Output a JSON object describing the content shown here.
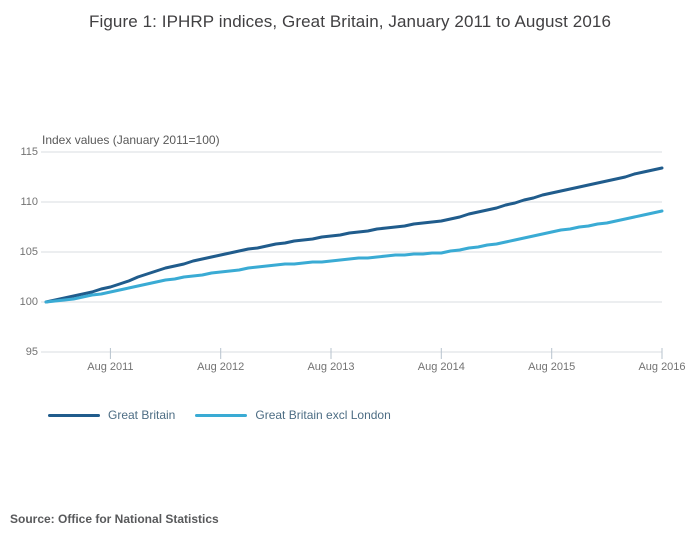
{
  "page": {
    "title": "Figure 1: IPHRP indices, Great Britain, January 2011 to August 2016",
    "source": "Source: Office for National Statistics"
  },
  "chart_data": {
    "type": "line",
    "title": "Figure 1: IPHRP indices, Great Britain, January 2011 to August 2016",
    "y_axis_title": "Index values (January 2011=100)",
    "x_start": "Jan 2011",
    "x_end": "Aug 2016",
    "frequency": "monthly",
    "ylim": [
      95,
      115
    ],
    "y_ticks": [
      115,
      110,
      105,
      100,
      95
    ],
    "x_ticks": [
      {
        "month_index": 7,
        "label": "Aug 2011"
      },
      {
        "month_index": 19,
        "label": "Aug 2012"
      },
      {
        "month_index": 31,
        "label": "Aug 2013"
      },
      {
        "month_index": 43,
        "label": "Aug 2014"
      },
      {
        "month_index": 55,
        "label": "Aug 2015"
      },
      {
        "month_index": 67,
        "label": "Aug 2016"
      }
    ],
    "grid": "horizontal",
    "grid_color": "#dadde1",
    "tick_color": "#b7c3ce",
    "legend_position": "bottom-left",
    "series": [
      {
        "name": "Great Britain",
        "color": "#205c8c",
        "values": [
          100.0,
          100.2,
          100.4,
          100.6,
          100.8,
          101.0,
          101.3,
          101.5,
          101.8,
          102.1,
          102.5,
          102.8,
          103.1,
          103.4,
          103.6,
          103.8,
          104.1,
          104.3,
          104.5,
          104.7,
          104.9,
          105.1,
          105.3,
          105.4,
          105.6,
          105.8,
          105.9,
          106.1,
          106.2,
          106.3,
          106.5,
          106.6,
          106.7,
          106.9,
          107.0,
          107.1,
          107.3,
          107.4,
          107.5,
          107.6,
          107.8,
          107.9,
          108.0,
          108.1,
          108.3,
          108.5,
          108.8,
          109.0,
          109.2,
          109.4,
          109.7,
          109.9,
          110.2,
          110.4,
          110.7,
          110.9,
          111.1,
          111.3,
          111.5,
          111.7,
          111.9,
          112.1,
          112.3,
          112.5,
          112.8,
          113.0,
          113.2,
          113.4
        ]
      },
      {
        "name": "Great Britain excl London",
        "color": "#3aabd4",
        "values": [
          100.0,
          100.1,
          100.2,
          100.3,
          100.5,
          100.7,
          100.8,
          101.0,
          101.2,
          101.4,
          101.6,
          101.8,
          102.0,
          102.2,
          102.3,
          102.5,
          102.6,
          102.7,
          102.9,
          103.0,
          103.1,
          103.2,
          103.4,
          103.5,
          103.6,
          103.7,
          103.8,
          103.8,
          103.9,
          104.0,
          104.0,
          104.1,
          104.2,
          104.3,
          104.4,
          104.4,
          104.5,
          104.6,
          104.7,
          104.7,
          104.8,
          104.8,
          104.9,
          104.9,
          105.1,
          105.2,
          105.4,
          105.5,
          105.7,
          105.8,
          106.0,
          106.2,
          106.4,
          106.6,
          106.8,
          107.0,
          107.2,
          107.3,
          107.5,
          107.6,
          107.8,
          107.9,
          108.1,
          108.3,
          108.5,
          108.7,
          108.9,
          109.1
        ]
      }
    ]
  }
}
